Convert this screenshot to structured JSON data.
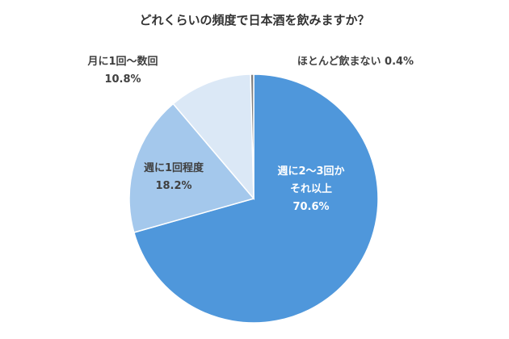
{
  "chart_data": {
    "type": "pie",
    "title": "どれくらいの頻度で日本酒を飲みますか？",
    "slices": [
      {
        "label": [
          "週に2～3回か",
          "それ以上"
        ],
        "value": 70.6,
        "value_label": "70.6%",
        "color": "#4f97db"
      },
      {
        "label": [
          "週に1回程度"
        ],
        "value": 18.2,
        "value_label": "18.2%",
        "color": "#a4c8ec"
      },
      {
        "label": [
          "月に1回～数回"
        ],
        "value": 10.8,
        "value_label": "10.8%",
        "color": "#dbe8f6"
      },
      {
        "label": [
          "ほとんど飲まない"
        ],
        "value": 0.4,
        "value_label": "0.4%",
        "color": "#7f7f7f"
      }
    ],
    "start_angle": "12 o'clock",
    "direction": "clockwise",
    "legend": "none"
  }
}
